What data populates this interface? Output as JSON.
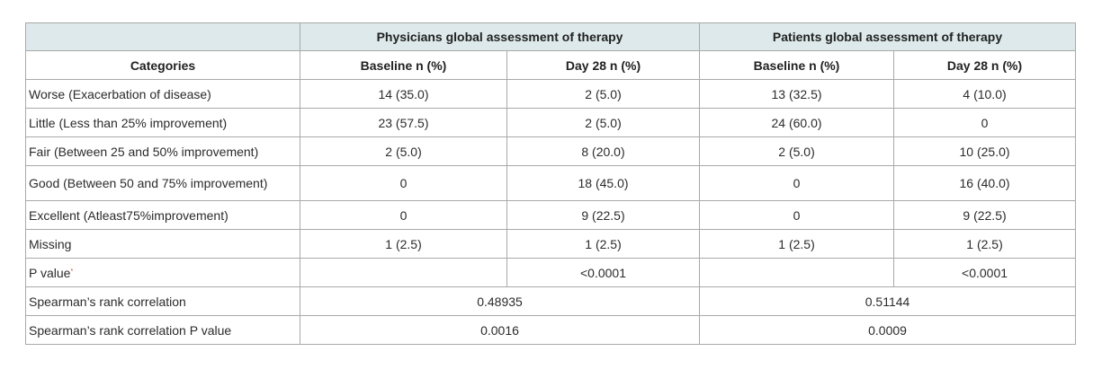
{
  "header": {
    "group1": "Physicians global assessment of therapy",
    "group2": "Patients global assessment of therapy",
    "categories": "Categories",
    "baseline": "Baseline n (%)",
    "day28": "Day 28 n (%)"
  },
  "rows": [
    {
      "category": "Worse (Exacerbation of disease)",
      "pb": "14 (35.0)",
      "pd": "2 (5.0)",
      "qb": "13 (32.5)",
      "qd": "4 (10.0)"
    },
    {
      "category": "Little (Less than 25% improvement)",
      "pb": "23 (57.5)",
      "pd": "2 (5.0)",
      "qb": "24 (60.0)",
      "qd": "0"
    },
    {
      "category": "Fair (Between 25 and 50% improvement)",
      "pb": "2 (5.0)",
      "pd": "8 (20.0)",
      "qb": "2 (5.0)",
      "qd": "10 (25.0)"
    },
    {
      "category": "Good (Between 50 and 75% improvement)",
      "pb": "0",
      "pd": "18 (45.0)",
      "qb": "0",
      "qd": "16 (40.0)"
    },
    {
      "category": "Excellent (Atleast75%improvement)",
      "pb": "0",
      "pd": "9 (22.5)",
      "qb": "0",
      "qd": "9 (22.5)"
    },
    {
      "category": "Missing",
      "pb": "1 (2.5)",
      "pd": "1 (2.5)",
      "qb": "1 (2.5)",
      "qd": "1 (2.5)"
    }
  ],
  "pvalue": {
    "label": "P value",
    "marker": "*",
    "physicians": "<0.0001",
    "patients": "<0.0001"
  },
  "spearman": {
    "label": "Spearman’s rank correlation",
    "physicians": "0.48935",
    "patients": "0.51144"
  },
  "spearman_p": {
    "label": "Spearman’s rank correlation P value",
    "physicians": "0.0016",
    "patients": "0.0009"
  }
}
